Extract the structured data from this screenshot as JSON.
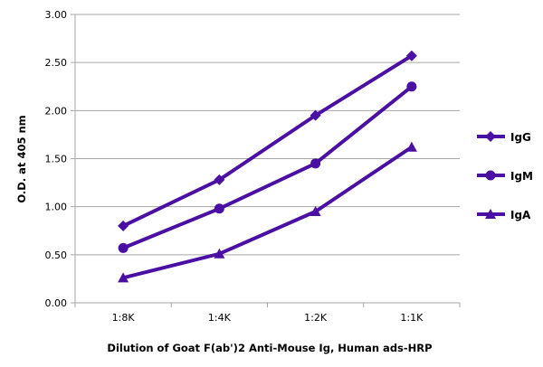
{
  "chart_data": {
    "type": "line",
    "title": "",
    "xlabel": "Dilution of Goat F(ab')2 Anti-Mouse Ig, Human ads-HRP",
    "ylabel": "O.D. at 405 nm",
    "categories": [
      "1:8K",
      "1:4K",
      "1:2K",
      "1:1K"
    ],
    "ylim": [
      0,
      3
    ],
    "yticks": [
      "0.00",
      "0.50",
      "1.00",
      "1.50",
      "2.00",
      "2.50",
      "3.00"
    ],
    "grid": true,
    "legend_position": "right",
    "color": "#4a0fa3",
    "series": [
      {
        "name": "IgG",
        "marker": "diamond",
        "values": [
          0.8,
          1.28,
          1.95,
          2.57
        ]
      },
      {
        "name": "IgM",
        "marker": "circle",
        "values": [
          0.57,
          0.98,
          1.45,
          2.25
        ]
      },
      {
        "name": "IgA",
        "marker": "triangle",
        "values": [
          0.26,
          0.51,
          0.95,
          1.62
        ]
      }
    ]
  }
}
